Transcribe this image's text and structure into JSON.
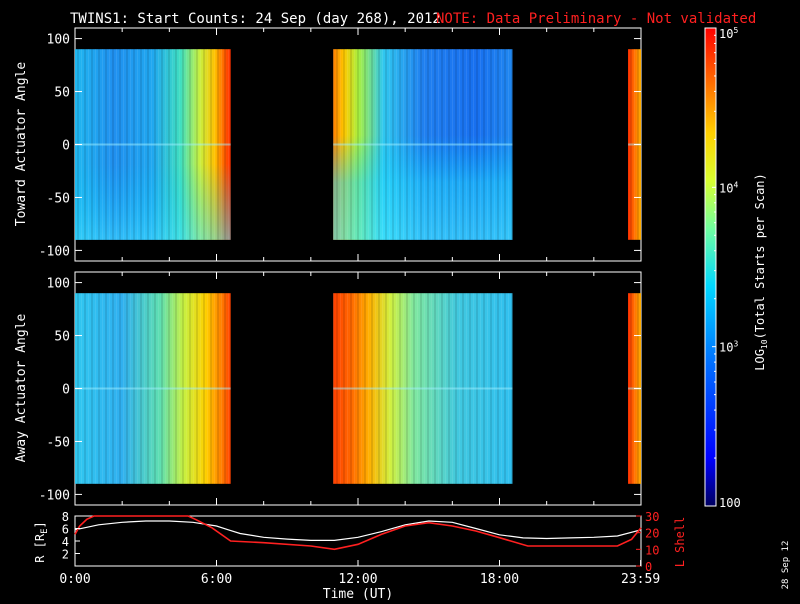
{
  "title": "TWINS1: Start Counts: 24 Sep (day 268), 2012",
  "note": "NOTE: Data Preliminary - Not validated",
  "date_stamp": "28 Sep 12",
  "colors": {
    "note": "#ff2020",
    "lshell": "#ff2020",
    "radius": "#ffffff",
    "background": "#000000"
  },
  "chart_data": [
    {
      "type": "heatmap",
      "ylabel": "Toward Actuator Angle",
      "ylim": [
        -110,
        110
      ],
      "yticks": [
        "100",
        "50",
        "0",
        "-50",
        "-100"
      ],
      "angle_range": [
        -90,
        90
      ],
      "data_intervals_hours": [
        [
          0.0,
          6.6
        ],
        [
          10.95,
          18.55
        ],
        [
          23.45,
          24.0
        ]
      ]
    },
    {
      "type": "heatmap",
      "ylabel": "Away Actuator Angle",
      "ylim": [
        -110,
        110
      ],
      "yticks": [
        "100",
        "50",
        "0",
        "-50",
        "-100"
      ],
      "angle_range": [
        -90,
        90
      ],
      "data_intervals_hours": [
        [
          0.0,
          6.6
        ],
        [
          10.95,
          18.55
        ],
        [
          23.45,
          24.0
        ]
      ]
    },
    {
      "type": "line",
      "xlabel": "Time (UT)",
      "xticks": [
        "0:00",
        "6:00",
        "12:00",
        "18:00",
        "23:59"
      ],
      "xlim_hours": [
        0,
        24
      ],
      "ylabel_left": "R [R",
      "ylabel_left_sub": "E",
      "ylabel_left_end": "]",
      "ylabel_right": "L Shell",
      "yticks_left": [
        "8",
        "6",
        "4",
        "2"
      ],
      "yticks_right": [
        "30",
        "20",
        "10",
        "0"
      ],
      "ylim_left": [
        0,
        8
      ],
      "ylim_right": [
        0,
        30
      ],
      "series": [
        {
          "axis": "left",
          "x": [
            0,
            1,
            2,
            3,
            4,
            5,
            6,
            6.5,
            7,
            8,
            9,
            10,
            11,
            12,
            13,
            14,
            15,
            16,
            17,
            18,
            19,
            20,
            21,
            22,
            23,
            24
          ],
          "values": [
            5.8,
            6.6,
            7.0,
            7.2,
            7.2,
            7.0,
            6.4,
            5.8,
            5.2,
            4.6,
            4.3,
            4.1,
            4.1,
            4.6,
            5.5,
            6.6,
            7.2,
            7.0,
            6.0,
            5.0,
            4.5,
            4.4,
            4.5,
            4.6,
            4.8,
            5.8
          ]
        },
        {
          "axis": "right",
          "x": [
            0,
            0.2,
            0.5,
            0.8,
            1.0,
            1.05,
            4.8,
            5.1,
            5.8,
            6.6,
            8,
            10,
            11.0,
            12,
            13,
            14,
            15,
            16,
            17,
            18,
            19.2,
            20,
            21,
            22,
            23,
            23.6,
            24
          ],
          "values": [
            19,
            24,
            28,
            31,
            31,
            30,
            30,
            28,
            23,
            15,
            14,
            12,
            10,
            13,
            19,
            24,
            26,
            24,
            21,
            17,
            12,
            12,
            12,
            12,
            12,
            16,
            23
          ]
        }
      ]
    }
  ],
  "colorbar": {
    "label_prefix": "LOG",
    "label_sub": "10",
    "label_suffix": "(Total Starts per Scan)",
    "ticks": [
      {
        "base": "10",
        "exp": "5",
        "value": 100000
      },
      {
        "base": "10",
        "exp": "4",
        "value": 10000
      },
      {
        "base": "10",
        "exp": "3",
        "value": 1000
      },
      {
        "base": "100",
        "exp": "",
        "value": 100
      }
    ],
    "range": [
      100,
      100000
    ]
  }
}
